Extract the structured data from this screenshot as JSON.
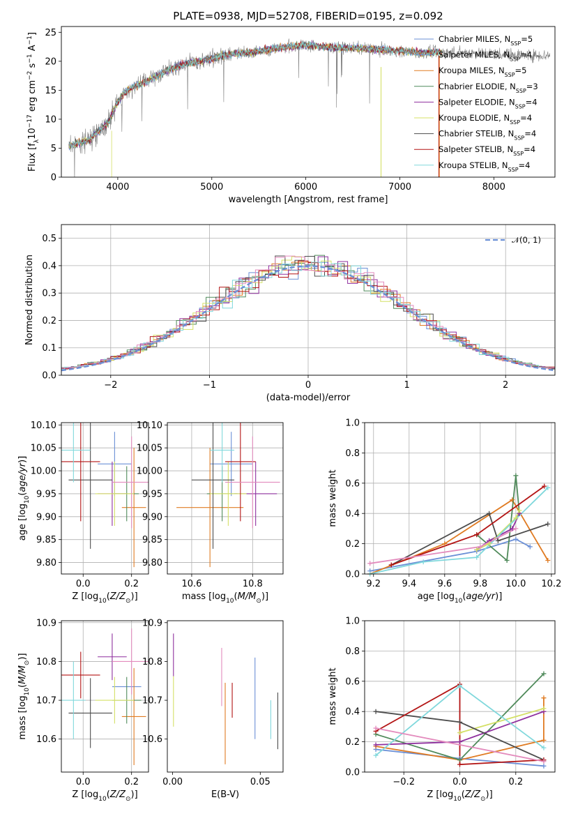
{
  "title": "PLATE=0938, MJD=52708, FIBERID=0195, z=0.092",
  "colors": {
    "Chabrier MILES": "#6a8fd6",
    "Salpeter MILES": "#6a8fd6",
    "Kroupa MILES": "#e07b22",
    "Chabrier ELODIE": "#4f8a5a",
    "Salpeter ELODIE": "#8e2f9e",
    "Kroupa ELODIE": "#d4e066",
    "Chabrier STELIB": "#4d4d4d",
    "Salpeter STELIB": "#b31414",
    "Kroupa STELIB": "#80d8dc",
    "pink": "#e38bbd"
  },
  "chart_data": [
    {
      "type": "line",
      "title": "PLATE=0938, MJD=52708, FIBERID=0195, z=0.092",
      "xlabel": "wavelength [Angstrom, rest frame]",
      "ylabel": "Flux [f_λ 10^-17 erg cm^-2 s^-1 A^-1]",
      "xlim": [
        3400,
        8650
      ],
      "ylim": [
        0,
        26
      ],
      "xticks": [
        4000,
        5000,
        6000,
        7000,
        8000
      ],
      "yticks": [
        0,
        5,
        10,
        15,
        20,
        25
      ],
      "grid": false,
      "legend_position": "top-right",
      "legend": [
        {
          "name": "Chabrier MILES",
          "nssp": "5"
        },
        {
          "name": "Salpeter MILES",
          "nssp": "4"
        },
        {
          "name": "Kroupa MILES",
          "nssp": "5"
        },
        {
          "name": "Chabrier ELODIE",
          "nssp": "3"
        },
        {
          "name": "Salpeter ELODIE",
          "nssp": "4"
        },
        {
          "name": "Kroupa ELODIE",
          "nssp": "4"
        },
        {
          "name": "Chabrier STELIB",
          "nssp": "4"
        },
        {
          "name": "Salpeter STELIB",
          "nssp": "4"
        },
        {
          "name": "Kroupa STELIB",
          "nssp": "4"
        }
      ],
      "continuum": {
        "x": [
          3500,
          3700,
          3900,
          4000,
          4100,
          4300,
          4500,
          4700,
          5000,
          5200,
          5400,
          5600,
          5800,
          6000,
          6200,
          6400,
          6600,
          6800,
          7000,
          7200,
          7400,
          7600,
          7800,
          8000,
          8200,
          8400
        ],
        "y": [
          5.5,
          6.5,
          9.5,
          13,
          15,
          16.5,
          18.2,
          19.5,
          20.5,
          21.2,
          21.5,
          22,
          22.5,
          22.8,
          22.5,
          22.3,
          22.2,
          22,
          21.8,
          21.5,
          21.5,
          21.5,
          21.4,
          21.3,
          21.2,
          21.0
        ]
      }
    },
    {
      "type": "line",
      "xlabel": "(data-model)/error",
      "ylabel": "Normed distribution",
      "xlim": [
        -2.5,
        2.5
      ],
      "ylim": [
        0,
        0.55
      ],
      "xticks": [
        -2,
        -1,
        0,
        1,
        2
      ],
      "yticks": [
        0.0,
        0.1,
        0.2,
        0.3,
        0.4,
        0.5
      ],
      "grid": true,
      "legend_position": "top-right",
      "gaussian": {
        "name": "N(0,1)",
        "mean": 0,
        "sigma": 1
      },
      "histogram_bin_width": 0.1
    },
    {
      "type": "scatter",
      "xlabel": "Z [log10(Z/Z⊙)]",
      "ylabel": "age [log10(age/yr)]",
      "xlim": [
        -0.09,
        0.27
      ],
      "ylim": [
        9.775,
        10.105
      ],
      "xticks": [
        0.0,
        0.2
      ],
      "yticks": [
        9.8,
        9.85,
        9.9,
        9.95,
        10.0,
        10.05,
        10.1
      ],
      "grid": true,
      "errorbars": [
        {
          "model": "Chabrier MILES",
          "x": 0.13,
          "xerr": 0.07,
          "y": 10.015,
          "yerr": 0.07
        },
        {
          "model": "Kroupa MILES",
          "x": 0.21,
          "xerr": 0.05,
          "y": 9.92,
          "yerr": 0.13
        },
        {
          "model": "Chabrier ELODIE",
          "x": 0.18,
          "xerr": 0.05,
          "y": 9.95,
          "yerr": 0.06
        },
        {
          "model": "Salpeter ELODIE",
          "x": 0.12,
          "xerr": 0.06,
          "y": 9.95,
          "yerr": 0.07
        },
        {
          "model": "Kroupa ELODIE",
          "x": 0.13,
          "xerr": 0.08,
          "y": 9.95,
          "yerr": 0.07
        },
        {
          "model": "Chabrier STELIB",
          "x": 0.03,
          "xerr": 0.09,
          "y": 9.98,
          "yerr": 0.15
        },
        {
          "model": "Salpeter STELIB",
          "x": -0.01,
          "xerr": 0.08,
          "y": 10.02,
          "yerr": 0.13
        },
        {
          "model": "Kroupa STELIB",
          "x": -0.04,
          "xerr": 0.07,
          "y": 10.045,
          "yerr": 0.07
        },
        {
          "model": "pink",
          "x": 0.2,
          "xerr": 0.08,
          "y": 9.975,
          "yerr": 0.1
        }
      ]
    },
    {
      "type": "scatter",
      "xlabel": "mass [log10(M/M⊙)]",
      "ylabel": "",
      "xlim": [
        10.52,
        10.9
      ],
      "ylim": [
        9.775,
        10.105
      ],
      "xticks": [
        10.6,
        10.8
      ],
      "yticks": [
        9.8,
        9.85,
        9.9,
        9.95,
        10.0,
        10.05,
        10.1
      ],
      "grid": true,
      "errorbars": [
        {
          "model": "Chabrier MILES",
          "x": 10.73,
          "xerr": 0.07,
          "y": 10.015,
          "yerr": 0.07
        },
        {
          "model": "Kroupa MILES",
          "x": 10.66,
          "xerr": 0.11,
          "y": 9.92,
          "yerr": 0.13
        },
        {
          "model": "Chabrier ELODIE",
          "x": 10.7,
          "xerr": 0.05,
          "y": 9.95,
          "yerr": 0.06
        },
        {
          "model": "Salpeter ELODIE",
          "x": 10.81,
          "xerr": 0.07,
          "y": 9.95,
          "yerr": 0.07
        },
        {
          "model": "Kroupa ELODIE",
          "x": 10.72,
          "xerr": 0.06,
          "y": 9.95,
          "yerr": 0.07
        },
        {
          "model": "Chabrier STELIB",
          "x": 10.67,
          "xerr": 0.07,
          "y": 9.98,
          "yerr": 0.15
        },
        {
          "model": "Salpeter STELIB",
          "x": 10.76,
          "xerr": 0.05,
          "y": 10.02,
          "yerr": 0.13
        },
        {
          "model": "Kroupa STELIB",
          "x": 10.7,
          "xerr": 0.04,
          "y": 10.045,
          "yerr": 0.07
        },
        {
          "model": "pink",
          "x": 10.8,
          "xerr": 0.09,
          "y": 9.975,
          "yerr": 0.1
        }
      ]
    },
    {
      "type": "line",
      "xlabel": "age [log10(age/yr)]",
      "ylabel": "mass weight",
      "xlim": [
        9.15,
        10.22
      ],
      "ylim": [
        0,
        1
      ],
      "xticks": [
        9.2,
        9.4,
        9.6,
        9.8,
        10.0,
        10.2
      ],
      "yticks": [
        0.0,
        0.2,
        0.4,
        0.6,
        0.8,
        1.0
      ],
      "grid": true,
      "series": [
        {
          "model": "Chabrier MILES",
          "x": [
            9.18,
            9.78,
            10.0,
            10.08
          ],
          "y": [
            0.02,
            0.15,
            0.23,
            0.18
          ]
        },
        {
          "model": "Kroupa MILES",
          "x": [
            9.18,
            9.6,
            9.98,
            10.18
          ],
          "y": [
            0.0,
            0.2,
            0.49,
            0.09
          ]
        },
        {
          "model": "Chabrier ELODIE",
          "x": [
            9.78,
            9.95,
            10.0,
            10.02
          ],
          "y": [
            0.26,
            0.09,
            0.65,
            0.4
          ]
        },
        {
          "model": "Salpeter ELODIE",
          "x": [
            9.78,
            9.85,
            9.98,
            10.02
          ],
          "y": [
            0.16,
            0.22,
            0.3,
            0.4
          ]
        },
        {
          "model": "Kroupa ELODIE",
          "x": [
            9.78,
            9.85,
            10.0,
            10.02
          ],
          "y": [
            0.16,
            0.2,
            0.37,
            0.42
          ]
        },
        {
          "model": "Chabrier STELIB",
          "x": [
            9.3,
            9.85,
            9.9,
            10.18
          ],
          "y": [
            0.06,
            0.4,
            0.22,
            0.33
          ]
        },
        {
          "model": "Salpeter STELIB",
          "x": [
            9.3,
            9.78,
            10.16
          ],
          "y": [
            0.06,
            0.26,
            0.58
          ]
        },
        {
          "model": "Kroupa STELIB",
          "x": [
            9.18,
            9.48,
            9.78,
            10.18
          ],
          "y": [
            0.0,
            0.08,
            0.11,
            0.57
          ]
        },
        {
          "model": "pink",
          "x": [
            9.18,
            9.8,
            10.0
          ],
          "y": [
            0.07,
            0.18,
            0.3
          ]
        }
      ]
    },
    {
      "type": "scatter",
      "xlabel": "Z [log10(Z/Z⊙)]",
      "ylabel": "mass [log10(M/M⊙)]",
      "xlim": [
        -0.09,
        0.27
      ],
      "ylim": [
        10.515,
        10.905
      ],
      "xticks": [
        0.0,
        0.2
      ],
      "yticks": [
        10.6,
        10.7,
        10.8,
        10.9
      ],
      "grid": true,
      "errorbars": [
        {
          "model": "Chabrier MILES",
          "x": 0.18,
          "xerr": 0.06,
          "y": 10.735,
          "yerr": 0.0
        },
        {
          "model": "Kroupa MILES",
          "x": 0.21,
          "xerr": 0.05,
          "y": 10.658,
          "yerr": 0.125
        },
        {
          "model": "Chabrier ELODIE",
          "x": 0.18,
          "xerr": 0.06,
          "y": 10.7,
          "yerr": 0.06
        },
        {
          "model": "Salpeter ELODIE",
          "x": 0.12,
          "xerr": 0.06,
          "y": 10.812,
          "yerr": 0.06
        },
        {
          "model": "Kroupa ELODIE",
          "x": 0.13,
          "xerr": 0.08,
          "y": 10.7,
          "yerr": 0.06
        },
        {
          "model": "Chabrier STELIB",
          "x": 0.03,
          "xerr": 0.09,
          "y": 10.667,
          "yerr": 0.09
        },
        {
          "model": "Salpeter STELIB",
          "x": -0.01,
          "xerr": 0.08,
          "y": 10.765,
          "yerr": 0.06
        },
        {
          "model": "Kroupa STELIB",
          "x": -0.04,
          "xerr": 0.05,
          "y": 10.7,
          "yerr": 0.1
        },
        {
          "model": "pink",
          "x": 0.2,
          "xerr": 0.08,
          "y": 10.8,
          "yerr": 0.085
        }
      ]
    },
    {
      "type": "scatter",
      "xlabel": "E(B-V)",
      "ylabel": "",
      "xlim": [
        -0.003,
        0.063
      ],
      "ylim": [
        10.515,
        10.905
      ],
      "xticks": [
        0.0,
        0.05
      ],
      "yticks": [
        10.6,
        10.7,
        10.8,
        10.9
      ],
      "grid": false,
      "errorbars": [
        {
          "model": "Chabrier MILES",
          "x": 0.047,
          "y": 10.705,
          "yerr": 0.105
        },
        {
          "model": "Kroupa MILES",
          "x": 0.03,
          "y": 10.64,
          "yerr": 0.105
        },
        {
          "model": "Salpeter ELODIE",
          "x": 0.0005,
          "y": 10.817,
          "yerr": 0.055
        },
        {
          "model": "Kroupa ELODIE",
          "x": 0.0005,
          "y": 10.697,
          "yerr": 0.065
        },
        {
          "model": "Chabrier STELIB",
          "x": 0.06,
          "y": 10.647,
          "yerr": 0.073
        },
        {
          "model": "Salpeter STELIB",
          "x": 0.034,
          "y": 10.7,
          "yerr": 0.045
        },
        {
          "model": "Kroupa STELIB",
          "x": 0.056,
          "y": 10.65,
          "yerr": 0.05
        },
        {
          "model": "pink",
          "x": 0.028,
          "y": 10.76,
          "yerr": 0.075
        }
      ]
    },
    {
      "type": "line",
      "xlabel": "Z [log10(Z/Z⊙)]",
      "ylabel": "mass weight",
      "xlim": [
        -0.34,
        0.34
      ],
      "ylim": [
        0,
        1
      ],
      "xticks": [
        -0.2,
        0.0,
        0.2
      ],
      "yticks": [
        0.0,
        0.2,
        0.4,
        0.6,
        0.8,
        1.0
      ],
      "grid": true,
      "series": [
        {
          "model": "Chabrier MILES",
          "x": [
            -0.3,
            0.0,
            0.3
          ],
          "y": [
            0.15,
            0.09,
            0.04
          ]
        },
        {
          "model": "Kroupa MILES",
          "x": [
            -0.3,
            0.0,
            0.3,
            0.3
          ],
          "y": [
            0.17,
            0.08,
            0.21,
            0.49
          ]
        },
        {
          "model": "Chabrier ELODIE",
          "x": [
            -0.3,
            0.0,
            0.3
          ],
          "y": [
            0.25,
            0.08,
            0.65
          ]
        },
        {
          "model": "Salpeter ELODIE",
          "x": [
            -0.3,
            0.0,
            0.3
          ],
          "y": [
            0.18,
            0.2,
            0.4
          ]
        },
        {
          "model": "Kroupa ELODIE",
          "x": [
            0.0,
            0.3
          ],
          "y": [
            0.26,
            0.42
          ]
        },
        {
          "model": "Chabrier STELIB",
          "x": [
            -0.3,
            0.0,
            0.3
          ],
          "y": [
            0.4,
            0.33,
            0.08
          ]
        },
        {
          "model": "Salpeter STELIB",
          "x": [
            -0.3,
            0.0,
            0.0,
            0.3
          ],
          "y": [
            0.27,
            0.58,
            0.05,
            0.08
          ]
        },
        {
          "model": "Kroupa STELIB",
          "x": [
            -0.3,
            0.0,
            0.3
          ],
          "y": [
            0.11,
            0.57,
            0.16
          ]
        },
        {
          "model": "pink",
          "x": [
            -0.3,
            0.3
          ],
          "y": [
            0.29,
            0.07
          ]
        }
      ]
    }
  ],
  "labels": {
    "p1_xlabel": "wavelength [Angstrom, rest frame]",
    "p2_xlabel": "(data-model)/error",
    "p2_ylabel": "Normed distribution",
    "p5_ylabel": "mass weight",
    "p8_ylabel": "mass weight",
    "p7_xlabel": "E(B-V)",
    "legend_gauss": "𝒩(0, 1)"
  }
}
